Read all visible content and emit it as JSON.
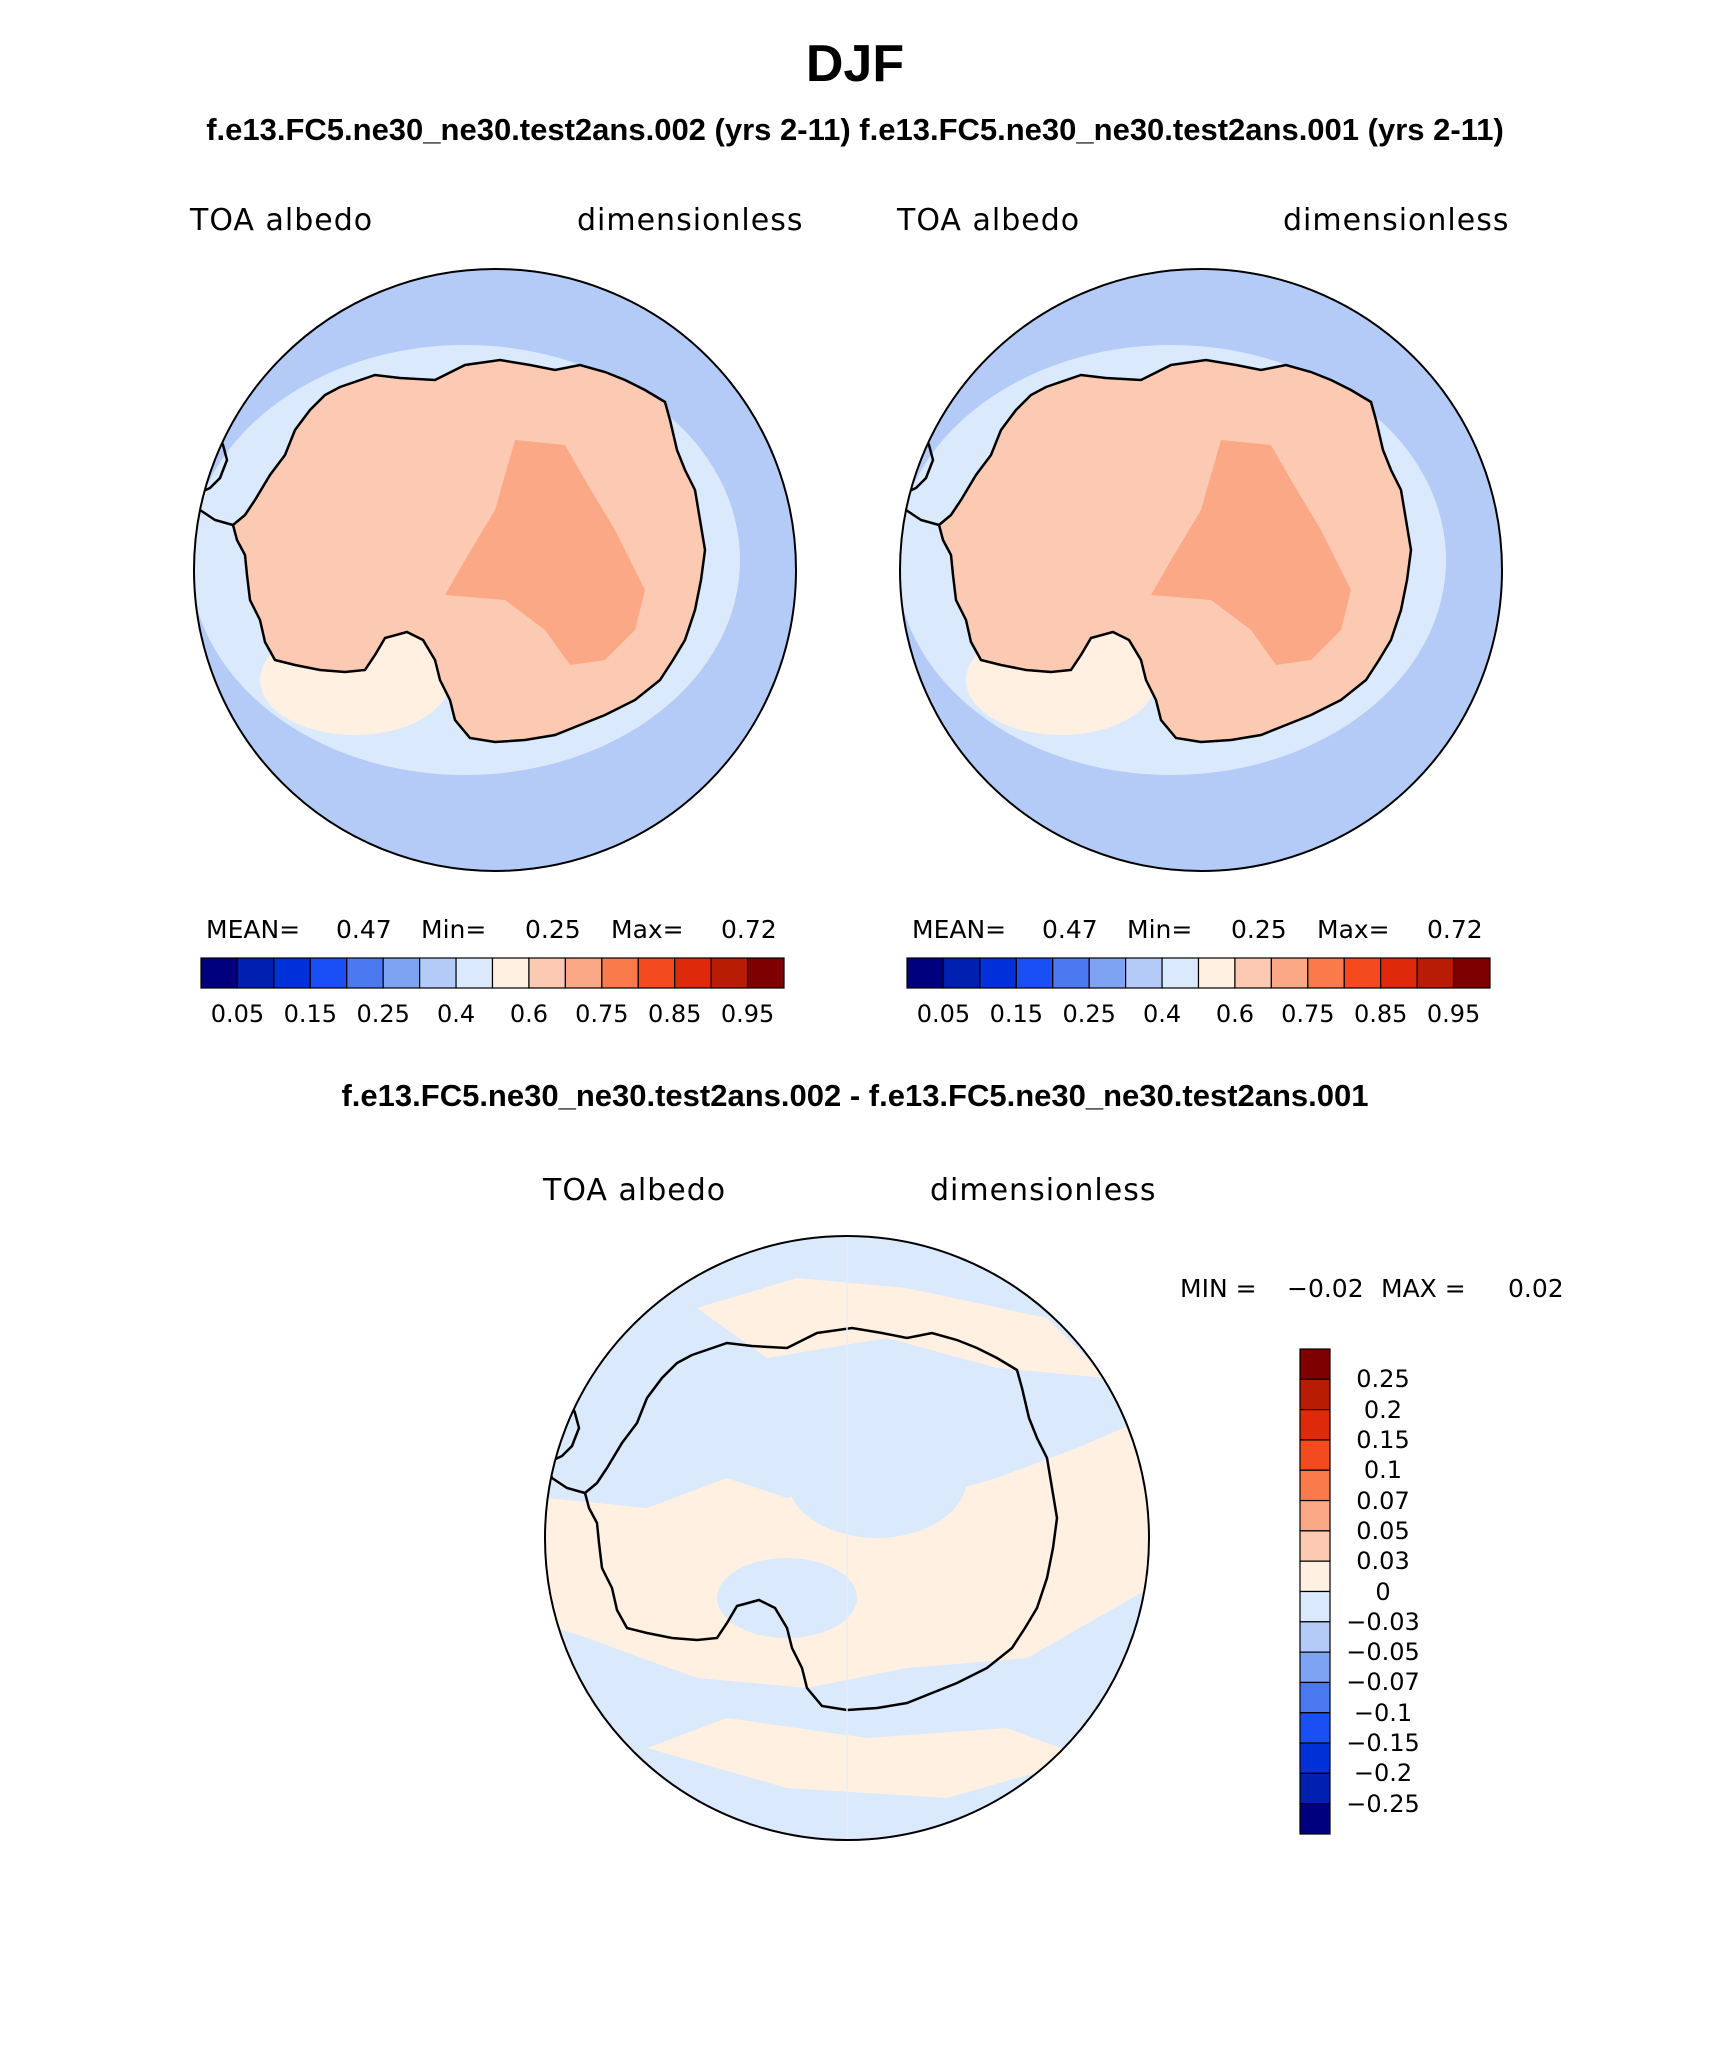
{
  "title": "DJF",
  "subtitle_top": "f.e13.FC5.ne30_ne30.test2ans.002 (yrs 2-11) f.e13.FC5.ne30_ne30.test2ans.001 (yrs 2-11)",
  "subtitle_diff": "f.e13.FC5.ne30_ne30.test2ans.002 - f.e13.FC5.ne30_ne30.test2ans.001",
  "panels": [
    {
      "id": "panel-case-002",
      "variable": "TOA albedo",
      "units": "dimensionless",
      "mean_label": "MEAN=",
      "mean": "0.47",
      "min_label": "Min=",
      "min": "0.25",
      "max_label": "Max=",
      "max": "0.72"
    },
    {
      "id": "panel-case-001",
      "variable": "TOA albedo",
      "units": "dimensionless",
      "mean_label": "MEAN=",
      "mean": "0.47",
      "min_label": "Min=",
      "min": "0.25",
      "max_label": "Max=",
      "max": "0.72"
    }
  ],
  "diff_panel": {
    "variable": "TOA albedo",
    "units": "dimensionless",
    "min_label": "MIN =",
    "min": "−0.02",
    "max_label": "MAX =",
    "max": "0.02"
  },
  "colorbar_main": {
    "colors": [
      "#00007f",
      "#0020b0",
      "#0030d8",
      "#1a4ff5",
      "#4a79f0",
      "#7ea3f2",
      "#b4cbf8",
      "#dbe9fc",
      "#fff0e2",
      "#fccab2",
      "#fba886",
      "#fa7a4b",
      "#f44a1f",
      "#de2a0a",
      "#b81c04",
      "#7f0000"
    ],
    "tick_labels": [
      "0.05",
      "0.15",
      "0.25",
      "0.4",
      "0.6",
      "0.75",
      "0.85",
      "0.95"
    ]
  },
  "colorbar_diff": {
    "colors_top_to_bottom": [
      "#7f0000",
      "#b81c04",
      "#de2a0a",
      "#f44a1f",
      "#fa7a4b",
      "#fba886",
      "#fccab2",
      "#fff0e2",
      "#dbe9fc",
      "#b4cbf8",
      "#7ea3f2",
      "#4a79f0",
      "#1a4ff5",
      "#0030d8",
      "#0020b0",
      "#00007f"
    ],
    "tick_labels": [
      "0.25",
      "0.2",
      "0.15",
      "0.1",
      "0.07",
      "0.05",
      "0.03",
      "0",
      "−0.03",
      "−0.05",
      "−0.07",
      "−0.1",
      "−0.15",
      "−0.2",
      "−0.25"
    ]
  },
  "map_colors": {
    "ocean": "#b4cbf8",
    "sea_ice_light": "#dbe9fc",
    "ice_edge": "#fff0e2",
    "land": "#fccab2",
    "plateau": "#fba886",
    "diff_negative": "#dbe9fc",
    "diff_positive": "#fff0e2"
  }
}
